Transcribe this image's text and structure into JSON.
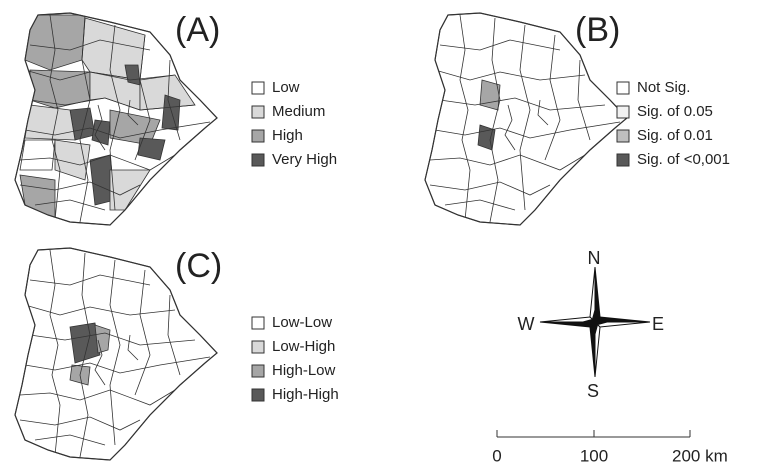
{
  "panels": [
    {
      "label": "(A)",
      "legend": [
        "Low",
        "Medium",
        "High",
        "Very High"
      ]
    },
    {
      "label": "(B)",
      "legend": [
        "Not Sig.",
        "Sig. of 0.05",
        "Sig. of 0.01",
        "Sig. of <0,001"
      ]
    },
    {
      "label": "(C)",
      "legend": [
        "Low-Low",
        "Low-High",
        "High-Low",
        "High-High"
      ]
    }
  ],
  "compass": {
    "north": "N",
    "west": "W",
    "east": "E",
    "south": "S"
  },
  "scale_bar": {
    "ticks": [
      "0",
      "100",
      "200 km"
    ]
  }
}
